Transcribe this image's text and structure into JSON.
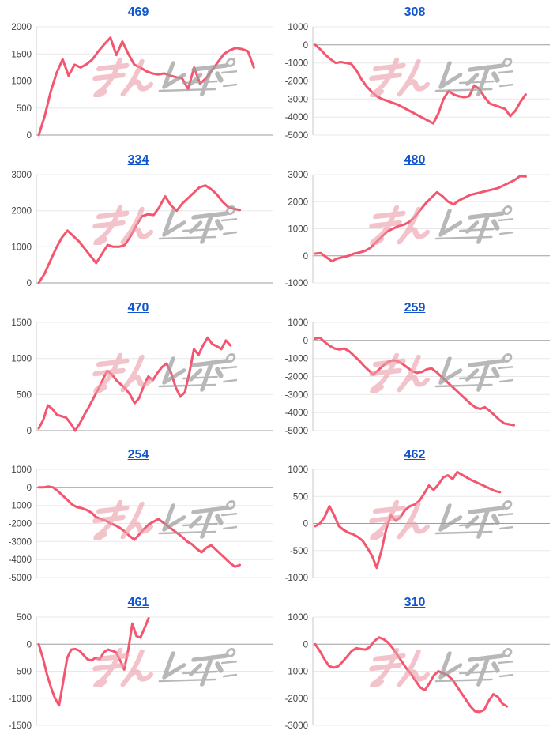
{
  "watermark": {
    "pink_text": "みん",
    "gray_text": "レポ"
  },
  "style": {
    "line_color": "#f4566f",
    "grid_color": "#e8e8e8",
    "baseline_color": "#9e9e9e",
    "axis_color": "#c9c9c9",
    "tick_label_color": "#444444",
    "link_color": "#1155cc",
    "watermark_pink": "#eda0ac",
    "watermark_gray": "#9e9e9e"
  },
  "chart_data": [
    {
      "type": "line",
      "title": "469",
      "ylim": [
        0,
        2000
      ],
      "tick_step": 500,
      "width_fraction": 0.92,
      "values": [
        0,
        350,
        800,
        1150,
        1400,
        1100,
        1300,
        1250,
        1310,
        1400,
        1550,
        1680,
        1800,
        1480,
        1730,
        1500,
        1300,
        1250,
        1180,
        1140,
        1120,
        1140,
        1100,
        1070,
        1050,
        850,
        1250,
        950,
        1050,
        1200,
        1350,
        1500,
        1570,
        1610,
        1590,
        1550,
        1250
      ]
    },
    {
      "type": "line",
      "title": "308",
      "ylim": [
        -5000,
        1000
      ],
      "tick_step": 1000,
      "width_fraction": 0.9,
      "values": [
        0,
        -250,
        -550,
        -800,
        -1000,
        -950,
        -1000,
        -1050,
        -1400,
        -1900,
        -2300,
        -2600,
        -2850,
        -3000,
        -3100,
        -3200,
        -3300,
        -3450,
        -3600,
        -3750,
        -3900,
        -4050,
        -4200,
        -4350,
        -3800,
        -3000,
        -2550,
        -2750,
        -2850,
        -2900,
        -2850,
        -2250,
        -2450,
        -2900,
        -3250,
        -3350,
        -3450,
        -3550,
        -3950,
        -3650,
        -3150,
        -2750
      ]
    },
    {
      "type": "line",
      "title": "334",
      "ylim": [
        0,
        3000
      ],
      "tick_step": 1000,
      "width_fraction": 0.86,
      "values": [
        0,
        250,
        600,
        950,
        1250,
        1450,
        1300,
        1150,
        950,
        750,
        550,
        800,
        1050,
        1000,
        1000,
        1050,
        1300,
        1600,
        1850,
        1900,
        1880,
        2100,
        2400,
        2150,
        2000,
        2200,
        2350,
        2500,
        2650,
        2700,
        2600,
        2450,
        2250,
        2100,
        2050,
        2020
      ]
    },
    {
      "type": "line",
      "title": "480",
      "ylim": [
        -1000,
        3000
      ],
      "tick_step": 1000,
      "width_fraction": 0.9,
      "values": [
        80,
        100,
        -50,
        -200,
        -100,
        -50,
        0,
        80,
        120,
        180,
        300,
        500,
        700,
        900,
        1000,
        1100,
        1150,
        1250,
        1450,
        1700,
        1950,
        2150,
        2350,
        2200,
        2000,
        1900,
        2050,
        2150,
        2250,
        2300,
        2350,
        2400,
        2450,
        2500,
        2600,
        2700,
        2800,
        2950,
        2930
      ]
    },
    {
      "type": "line",
      "title": "470",
      "ylim": [
        0,
        1500
      ],
      "tick_step": 500,
      "width_fraction": 0.82,
      "values": [
        30,
        150,
        350,
        300,
        220,
        200,
        180,
        100,
        0,
        100,
        220,
        330,
        450,
        570,
        700,
        830,
        780,
        700,
        640,
        580,
        500,
        380,
        450,
        620,
        750,
        700,
        800,
        880,
        930,
        800,
        600,
        470,
        530,
        800,
        1130,
        1050,
        1180,
        1290,
        1200,
        1170,
        1130,
        1250,
        1180
      ]
    },
    {
      "type": "line",
      "title": "259",
      "ylim": [
        -5000,
        1000
      ],
      "tick_step": 1000,
      "width_fraction": 0.85,
      "values": [
        100,
        150,
        -100,
        -300,
        -450,
        -500,
        -450,
        -600,
        -850,
        -1100,
        -1400,
        -1650,
        -1900,
        -1650,
        -1400,
        -1200,
        -1100,
        -1150,
        -1300,
        -1500,
        -1700,
        -1800,
        -1750,
        -1600,
        -1550,
        -1750,
        -2000,
        -2250,
        -2500,
        -2750,
        -3000,
        -3250,
        -3500,
        -3700,
        -3800,
        -3700,
        -3900,
        -4150,
        -4400,
        -4600,
        -4650,
        -4700
      ]
    },
    {
      "type": "line",
      "title": "254",
      "ylim": [
        -5000,
        1000
      ],
      "tick_step": 1000,
      "width_fraction": 0.86,
      "values": [
        0,
        0,
        50,
        0,
        -200,
        -450,
        -700,
        -950,
        -1100,
        -1150,
        -1250,
        -1400,
        -1650,
        -1750,
        -1850,
        -2000,
        -2100,
        -2250,
        -2450,
        -2700,
        -2900,
        -2600,
        -2300,
        -2050,
        -1900,
        -1750,
        -1950,
        -2150,
        -2350,
        -2550,
        -2750,
        -3000,
        -3150,
        -3400,
        -3600,
        -3350,
        -3200,
        -3450,
        -3700,
        -3950,
        -4200,
        -4400,
        -4300
      ]
    },
    {
      "type": "line",
      "title": "462",
      "ylim": [
        -1000,
        1000
      ],
      "tick_step": 500,
      "width_fraction": 0.79,
      "values": [
        -50,
        0,
        120,
        320,
        150,
        -50,
        -120,
        -170,
        -200,
        -250,
        -320,
        -450,
        -600,
        -820,
        -500,
        -100,
        150,
        50,
        120,
        250,
        320,
        350,
        420,
        550,
        700,
        620,
        720,
        850,
        890,
        820,
        950,
        900,
        850,
        800,
        760,
        720,
        680,
        640,
        600,
        580
      ]
    },
    {
      "type": "line",
      "title": "461",
      "ylim": [
        -1500,
        500
      ],
      "tick_step": 500,
      "width_fraction": 0.47,
      "values": [
        0,
        -250,
        -550,
        -800,
        -1000,
        -1130,
        -700,
        -250,
        -100,
        -90,
        -120,
        -200,
        -280,
        -300,
        -250,
        -280,
        -150,
        -100,
        -120,
        -150,
        -300,
        -470,
        -100,
        380,
        150,
        120,
        300,
        480
      ]
    },
    {
      "type": "line",
      "title": "310",
      "ylim": [
        -3000,
        1000
      ],
      "tick_step": 1000,
      "width_fraction": 0.82,
      "values": [
        0,
        -250,
        -550,
        -800,
        -870,
        -820,
        -650,
        -450,
        -250,
        -150,
        -180,
        -200,
        -100,
        120,
        250,
        180,
        50,
        -150,
        -400,
        -650,
        -900,
        -1100,
        -1350,
        -1600,
        -1700,
        -1450,
        -1150,
        -1000,
        -1080,
        -1150,
        -1300,
        -1550,
        -1800,
        -2050,
        -2300,
        -2480,
        -2500,
        -2430,
        -2100,
        -1850,
        -1950,
        -2200,
        -2300
      ]
    }
  ]
}
